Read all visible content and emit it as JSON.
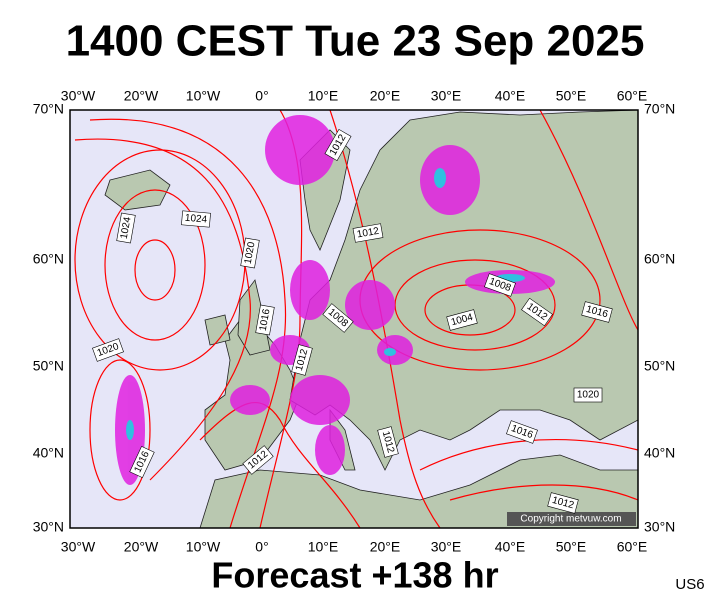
{
  "header": {
    "title": "1400 CEST Tue 23 Sep 2025"
  },
  "map": {
    "lon_labels": [
      "30°W",
      "20°W",
      "10°W",
      "0°",
      "10°E",
      "20°E",
      "30°E",
      "40°E",
      "50°E",
      "60°E"
    ],
    "lat_labels": [
      "70°N",
      "60°N",
      "50°N",
      "40°N",
      "30°N"
    ],
    "isobar_labels": [
      "1012",
      "1024",
      "1024",
      "1012",
      "1020",
      "1016",
      "1008",
      "1008",
      "1012",
      "1004",
      "1016",
      "1012",
      "1020",
      "1020",
      "1016",
      "1016",
      "1012",
      "1012",
      "1012"
    ],
    "copyright": "Copyright metvuw.com"
  },
  "footer": {
    "forecast": "Forecast +138 hr",
    "code": "US6"
  }
}
